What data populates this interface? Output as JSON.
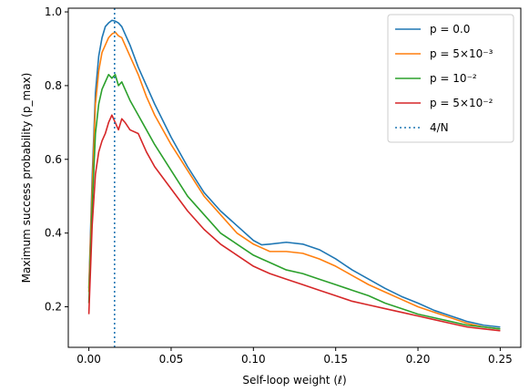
{
  "chart_data": {
    "type": "line",
    "xlabel": "Self-loop weight (ℓ)",
    "ylabel": "Maximum success probability (p_max)",
    "xlim": [
      -0.0125,
      0.2625
    ],
    "ylim": [
      0.09,
      1.01
    ],
    "x_ticks": [
      0.0,
      0.05,
      0.1,
      0.15,
      0.2,
      0.25
    ],
    "x_tick_labels": [
      "0.00",
      "0.05",
      "0.10",
      "0.15",
      "0.20",
      "0.25"
    ],
    "y_ticks": [
      0.2,
      0.4,
      0.6,
      0.8,
      1.0
    ],
    "y_tick_labels": [
      "0.2",
      "0.4",
      "0.6",
      "0.8",
      "1.0"
    ],
    "grid": false,
    "legend_position": "top-right",
    "series": [
      {
        "name": "p = 0.0",
        "color": "#1f77b4",
        "x": [
          0,
          0.002,
          0.004,
          0.006,
          0.008,
          0.01,
          0.012,
          0.014,
          0.016,
          0.018,
          0.02,
          0.022,
          0.025,
          0.03,
          0.035,
          0.04,
          0.05,
          0.06,
          0.07,
          0.08,
          0.09,
          0.1,
          0.105,
          0.11,
          0.12,
          0.13,
          0.14,
          0.15,
          0.16,
          0.17,
          0.18,
          0.19,
          0.2,
          0.21,
          0.22,
          0.23,
          0.24,
          0.25
        ],
        "y": [
          0.25,
          0.55,
          0.78,
          0.88,
          0.93,
          0.96,
          0.97,
          0.977,
          0.975,
          0.97,
          0.96,
          0.94,
          0.91,
          0.85,
          0.8,
          0.75,
          0.66,
          0.58,
          0.51,
          0.46,
          0.42,
          0.38,
          0.368,
          0.37,
          0.375,
          0.37,
          0.355,
          0.33,
          0.3,
          0.275,
          0.25,
          0.228,
          0.21,
          0.19,
          0.175,
          0.16,
          0.15,
          0.145
        ]
      },
      {
        "name": "p = 5×10⁻³",
        "color": "#ff7f0e",
        "x": [
          0,
          0.002,
          0.004,
          0.006,
          0.008,
          0.01,
          0.012,
          0.014,
          0.016,
          0.018,
          0.02,
          0.022,
          0.025,
          0.03,
          0.035,
          0.04,
          0.05,
          0.06,
          0.07,
          0.08,
          0.09,
          0.1,
          0.105,
          0.11,
          0.12,
          0.13,
          0.14,
          0.15,
          0.16,
          0.17,
          0.18,
          0.19,
          0.2,
          0.21,
          0.22,
          0.23,
          0.24,
          0.25
        ],
        "y": [
          0.24,
          0.52,
          0.75,
          0.84,
          0.89,
          0.91,
          0.93,
          0.94,
          0.945,
          0.935,
          0.93,
          0.91,
          0.88,
          0.83,
          0.77,
          0.72,
          0.64,
          0.57,
          0.5,
          0.45,
          0.4,
          0.37,
          0.36,
          0.35,
          0.35,
          0.345,
          0.33,
          0.31,
          0.285,
          0.26,
          0.24,
          0.22,
          0.2,
          0.185,
          0.17,
          0.155,
          0.145,
          0.14
        ]
      },
      {
        "name": "p = 10⁻²",
        "color": "#2ca02c",
        "x": [
          0,
          0.002,
          0.004,
          0.006,
          0.008,
          0.01,
          0.012,
          0.014,
          0.016,
          0.018,
          0.02,
          0.022,
          0.025,
          0.03,
          0.035,
          0.04,
          0.05,
          0.06,
          0.07,
          0.08,
          0.09,
          0.1,
          0.105,
          0.11,
          0.12,
          0.13,
          0.14,
          0.15,
          0.16,
          0.17,
          0.18,
          0.19,
          0.2,
          0.21,
          0.22,
          0.23,
          0.24,
          0.25
        ],
        "y": [
          0.21,
          0.47,
          0.67,
          0.75,
          0.79,
          0.81,
          0.83,
          0.82,
          0.83,
          0.8,
          0.81,
          0.79,
          0.76,
          0.72,
          0.68,
          0.64,
          0.57,
          0.5,
          0.45,
          0.4,
          0.37,
          0.34,
          0.33,
          0.32,
          0.3,
          0.29,
          0.275,
          0.26,
          0.245,
          0.23,
          0.21,
          0.195,
          0.18,
          0.17,
          0.16,
          0.15,
          0.145,
          0.14
        ]
      },
      {
        "name": "p = 5×10⁻²",
        "color": "#d62728",
        "x": [
          0,
          0.002,
          0.004,
          0.006,
          0.008,
          0.01,
          0.012,
          0.014,
          0.016,
          0.018,
          0.02,
          0.022,
          0.025,
          0.03,
          0.035,
          0.04,
          0.05,
          0.06,
          0.07,
          0.08,
          0.09,
          0.1,
          0.105,
          0.11,
          0.12,
          0.13,
          0.14,
          0.15,
          0.16,
          0.17,
          0.18,
          0.19,
          0.2,
          0.21,
          0.22,
          0.23,
          0.24,
          0.25
        ],
        "y": [
          0.18,
          0.42,
          0.56,
          0.62,
          0.65,
          0.67,
          0.7,
          0.72,
          0.7,
          0.68,
          0.71,
          0.7,
          0.68,
          0.67,
          0.62,
          0.58,
          0.52,
          0.46,
          0.41,
          0.37,
          0.34,
          0.31,
          0.3,
          0.29,
          0.275,
          0.26,
          0.245,
          0.23,
          0.215,
          0.205,
          0.195,
          0.185,
          0.175,
          0.165,
          0.155,
          0.145,
          0.14,
          0.135
        ]
      }
    ],
    "vline": {
      "name": "4/N",
      "x": 0.015625,
      "color": "#1f77b4",
      "style": "dotted"
    }
  }
}
